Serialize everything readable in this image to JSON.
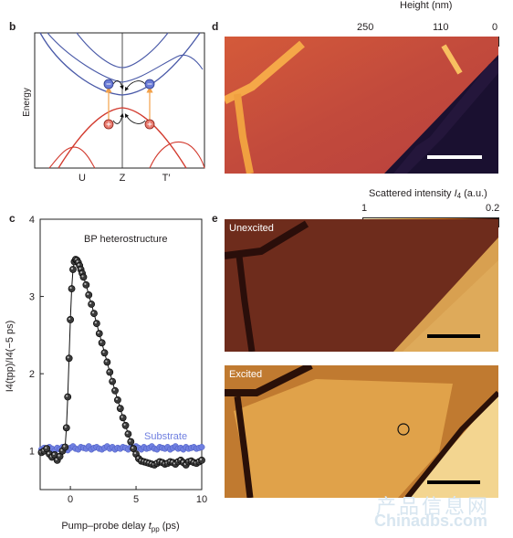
{
  "panels": {
    "b": {
      "label": "b",
      "ylabel": "Energy",
      "xticks": [
        "U",
        "Z",
        "T′"
      ]
    },
    "c": {
      "label": "c",
      "annotation": "BP heterostructure",
      "substrate_label": "Substrate",
      "xlabel_main": "Pump–probe delay ",
      "xlabel_var": "t",
      "xlabel_sub": "pp",
      "xlabel_unit": " (ps)",
      "ylabel_text": "I4(tpp)/I4(−5 ps)"
    },
    "d": {
      "label": "d",
      "colorbar_title": "Height (nm)",
      "colorbar_ticks": [
        "250",
        "110",
        "0"
      ]
    },
    "e": {
      "label": "e",
      "colorbar_title_main": "Scattered intensity ",
      "colorbar_title_var": "I",
      "colorbar_title_sub": "4",
      "colorbar_title_unit": " (a.u.)",
      "colorbar_ticks": [
        "1",
        "0.2"
      ],
      "unexcited": "Unexcited",
      "excited": "Excited"
    }
  },
  "watermark": {
    "chinese": "产品信息网",
    "latin": "Chinadbs.com"
  },
  "colors": {
    "conduction_band": "#4a5aa8",
    "valence_band": "#d23a2e",
    "arrow": "#f2a14a",
    "heterostructure_marker": "#111111",
    "substrate_marker": "#6f7fe0"
  },
  "chart_data": {
    "type": "scatter",
    "title": "",
    "xlabel": "Pump–probe delay t_pp (ps)",
    "ylabel": "I4(tpp)/I4(−5 ps)",
    "xlim": [
      -2.3,
      10
    ],
    "ylim": [
      0.5,
      4
    ],
    "xticks": [
      0,
      5,
      10
    ],
    "yticks": [
      1,
      2,
      3,
      4
    ],
    "series": [
      {
        "name": "BP heterostructure",
        "x": [
          -2.2,
          -2.0,
          -1.8,
          -1.6,
          -1.4,
          -1.2,
          -1.0,
          -0.8,
          -0.6,
          -0.4,
          -0.3,
          -0.2,
          -0.1,
          0.0,
          0.1,
          0.2,
          0.3,
          0.4,
          0.5,
          0.6,
          0.7,
          0.8,
          0.9,
          1.0,
          1.2,
          1.4,
          1.6,
          1.8,
          2.0,
          2.2,
          2.4,
          2.6,
          2.8,
          3.0,
          3.2,
          3.4,
          3.6,
          3.8,
          4.0,
          4.2,
          4.4,
          4.6,
          4.8,
          5.0,
          5.2,
          5.4,
          5.6,
          5.8,
          6.0,
          6.2,
          6.4,
          6.6,
          6.8,
          7.0,
          7.2,
          7.4,
          7.6,
          7.8,
          8.0,
          8.2,
          8.4,
          8.6,
          8.8,
          9.0,
          9.2,
          9.4,
          9.6,
          9.8,
          10.0
        ],
        "y": [
          0.98,
          1.0,
          1.03,
          0.96,
          0.92,
          0.95,
          0.88,
          0.93,
          1.0,
          1.05,
          1.3,
          1.7,
          2.2,
          2.7,
          3.1,
          3.35,
          3.45,
          3.48,
          3.47,
          3.44,
          3.4,
          3.35,
          3.3,
          3.25,
          3.15,
          3.02,
          2.9,
          2.78,
          2.65,
          2.52,
          2.4,
          2.27,
          2.15,
          2.02,
          1.9,
          1.78,
          1.66,
          1.55,
          1.43,
          1.33,
          1.22,
          1.12,
          1.03,
          0.96,
          0.9,
          0.87,
          0.86,
          0.85,
          0.84,
          0.83,
          0.82,
          0.84,
          0.86,
          0.85,
          0.83,
          0.84,
          0.86,
          0.85,
          0.83,
          0.86,
          0.88,
          0.85,
          0.82,
          0.86,
          0.87,
          0.85,
          0.84,
          0.86,
          0.88
        ]
      },
      {
        "name": "Substrate",
        "x": [
          -2.2,
          -2.0,
          -1.8,
          -1.6,
          -1.4,
          -1.2,
          -1.0,
          -0.8,
          -0.6,
          -0.4,
          -0.2,
          0.0,
          0.2,
          0.4,
          0.6,
          0.8,
          1.0,
          1.2,
          1.4,
          1.6,
          1.8,
          2.0,
          2.2,
          2.4,
          2.6,
          2.8,
          3.0,
          3.2,
          3.4,
          3.6,
          3.8,
          4.0,
          4.2,
          4.4,
          4.6,
          4.8,
          5.0,
          5.2,
          5.4,
          5.6,
          5.8,
          6.0,
          6.2,
          6.4,
          6.6,
          6.8,
          7.0,
          7.2,
          7.4,
          7.6,
          7.8,
          8.0,
          8.2,
          8.4,
          8.6,
          8.8,
          9.0,
          9.2,
          9.4,
          9.6,
          9.8,
          10.0
        ],
        "y": [
          1.02,
          1.04,
          1.01,
          1.05,
          1.03,
          1.0,
          1.04,
          1.02,
          1.05,
          1.03,
          1.01,
          1.04,
          1.06,
          1.03,
          1.02,
          1.05,
          1.04,
          1.03,
          1.06,
          1.02,
          1.04,
          1.05,
          1.03,
          1.02,
          1.04,
          1.06,
          1.03,
          1.05,
          1.02,
          1.04,
          1.03,
          1.05,
          1.04,
          1.02,
          1.05,
          1.03,
          1.06,
          1.04,
          1.02,
          1.05,
          1.03,
          1.04,
          1.06,
          1.03,
          1.02,
          1.05,
          1.04,
          1.03,
          1.05,
          1.02,
          1.04,
          1.06,
          1.03,
          1.04,
          1.02,
          1.05,
          1.03,
          1.04,
          1.05,
          1.03,
          1.04,
          1.05
        ]
      }
    ]
  }
}
